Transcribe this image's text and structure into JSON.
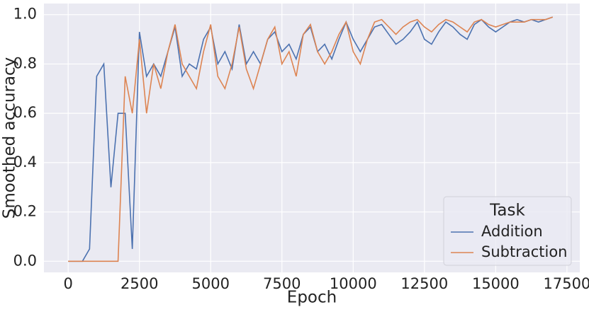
{
  "chart_data": {
    "type": "line",
    "x_label": "Epoch",
    "y_label": "Smoothed accuracy",
    "x": [
      0,
      250,
      500,
      750,
      1000,
      1250,
      1500,
      1750,
      2000,
      2250,
      2500,
      2750,
      3000,
      3250,
      3500,
      3750,
      4000,
      4250,
      4500,
      4750,
      5000,
      5250,
      5500,
      5750,
      6000,
      6250,
      6500,
      6750,
      7000,
      7250,
      7500,
      7750,
      8000,
      8250,
      8500,
      8750,
      9000,
      9250,
      9500,
      9750,
      10000,
      10250,
      10500,
      10750,
      11000,
      11250,
      11500,
      11750,
      12000,
      12250,
      12500,
      12750,
      13000,
      13250,
      13500,
      13750,
      14000,
      14250,
      14500,
      14750,
      15000,
      15250,
      15500,
      15750,
      16000,
      16250,
      16500,
      16750,
      17000
    ],
    "series": [
      {
        "name": "Addition",
        "color": "#4c72b0",
        "values": [
          0,
          0,
          0,
          0.05,
          0.75,
          0.8,
          0.3,
          0.6,
          0.6,
          0.05,
          0.93,
          0.75,
          0.8,
          0.75,
          0.85,
          0.95,
          0.75,
          0.8,
          0.78,
          0.9,
          0.95,
          0.8,
          0.85,
          0.78,
          0.96,
          0.8,
          0.85,
          0.8,
          0.9,
          0.93,
          0.85,
          0.88,
          0.82,
          0.92,
          0.95,
          0.85,
          0.88,
          0.82,
          0.9,
          0.97,
          0.9,
          0.85,
          0.9,
          0.95,
          0.96,
          0.92,
          0.88,
          0.9,
          0.93,
          0.97,
          0.9,
          0.88,
          0.93,
          0.97,
          0.95,
          0.92,
          0.9,
          0.96,
          0.98,
          0.95,
          0.93,
          0.95,
          0.97,
          0.98,
          0.97,
          0.98,
          0.97,
          0.98,
          0.99
        ]
      },
      {
        "name": "Subtraction",
        "color": "#dd8452",
        "values": [
          0,
          0,
          0,
          0,
          0,
          0,
          0,
          0,
          0.75,
          0.6,
          0.9,
          0.6,
          0.8,
          0.7,
          0.85,
          0.96,
          0.8,
          0.75,
          0.7,
          0.85,
          0.96,
          0.75,
          0.7,
          0.8,
          0.95,
          0.78,
          0.7,
          0.8,
          0.9,
          0.95,
          0.8,
          0.85,
          0.75,
          0.92,
          0.96,
          0.85,
          0.8,
          0.85,
          0.92,
          0.97,
          0.85,
          0.8,
          0.9,
          0.97,
          0.98,
          0.95,
          0.92,
          0.95,
          0.97,
          0.98,
          0.95,
          0.93,
          0.96,
          0.98,
          0.97,
          0.95,
          0.93,
          0.97,
          0.98,
          0.96,
          0.95,
          0.96,
          0.97,
          0.97,
          0.97,
          0.98,
          0.98,
          0.98,
          0.99
        ]
      }
    ],
    "xlim": [
      -850,
      17950
    ],
    "xticks": [
      0,
      2500,
      5000,
      7500,
      10000,
      12500,
      15000,
      17500
    ],
    "ylim": [
      -0.045,
      1.045
    ],
    "yticks": [
      {
        "value": 0,
        "label": "0.0"
      },
      0.2,
      0.4,
      0.6,
      0.8,
      {
        "value": 1,
        "label": "1.0"
      }
    ],
    "grid": true,
    "legend_title": "Task",
    "legend_position": "lower right"
  }
}
